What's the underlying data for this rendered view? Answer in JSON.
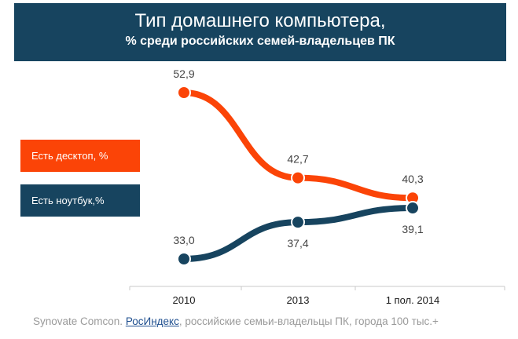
{
  "chart_data": {
    "type": "line",
    "title": "Тип домашнего компьютера,",
    "subtitle": "% среди российских семей-владельцев ПК",
    "categories": [
      "2010",
      "2013",
      "1 пол. 2014"
    ],
    "series": [
      {
        "name": "Есть десктоп, %",
        "values": [
          52.9,
          42.7,
          40.3
        ],
        "labels": [
          "52,9",
          "42,7",
          "40,3"
        ],
        "color": "#fb4407"
      },
      {
        "name": "Есть ноутбук,%",
        "values": [
          33.0,
          37.4,
          39.1
        ],
        "labels": [
          "33,0",
          "37,4",
          "39,1"
        ],
        "color": "#17445f"
      }
    ],
    "legend_position": "left",
    "grid": false
  },
  "footer": {
    "source": "Synovate Comcon.",
    "link": "РосИндекс",
    "text": ", российские семьи-владельцы ПК, города 100 тыс.+"
  },
  "colors": {
    "header_bg": "#17445f",
    "desktop": "#fb4407",
    "laptop": "#17445f",
    "axis": "#c8c8c8"
  }
}
